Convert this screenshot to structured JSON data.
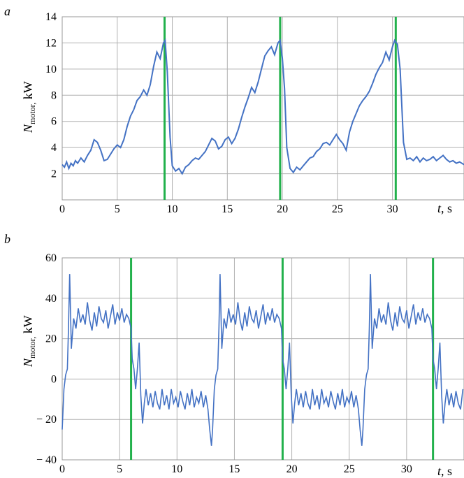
{
  "chart_data": [
    {
      "panel_label": "a",
      "type": "line",
      "ylabel_main": "N",
      "ylabel_sub": "motor,",
      "ylabel_unit": " kW",
      "xlabel_var": "t",
      "xlabel_unit": ", s",
      "xlim": [
        0,
        36.5
      ],
      "ylim": [
        0,
        14
      ],
      "xticks": [
        0,
        5,
        10,
        15,
        20,
        25,
        30
      ],
      "yticks": [
        2,
        4,
        6,
        8,
        10,
        12,
        14
      ],
      "grid": true,
      "colors": {
        "series": "#4472c4",
        "markers": "#22b14c"
      },
      "vlines": [
        9.3,
        19.8,
        30.3
      ],
      "series": [
        {
          "x": [
            0,
            0.2,
            0.4,
            0.6,
            0.8,
            1,
            1.2,
            1.4,
            1.7,
            2,
            2.3,
            2.6,
            2.9,
            3.2,
            3.5,
            3.8,
            4.1,
            4.4,
            4.7,
            5,
            5.3,
            5.6,
            5.9,
            6.2,
            6.5,
            6.8,
            7.1,
            7.4,
            7.7,
            8,
            8.3,
            8.6,
            8.9,
            9.2,
            9.35,
            9.55,
            9.8,
            10,
            10.3,
            10.6,
            10.9,
            11.2,
            11.5,
            11.8,
            12.1,
            12.4,
            12.7,
            13,
            13.3,
            13.6,
            13.9,
            14.2,
            14.5,
            14.8,
            15.1,
            15.4,
            15.7,
            16,
            16.3,
            16.6,
            16.9,
            17.2,
            17.5,
            17.8,
            18.1,
            18.4,
            18.7,
            19,
            19.3,
            19.6,
            19.8,
            20,
            20.2,
            20.4,
            20.7,
            21,
            21.3,
            21.6,
            21.9,
            22.2,
            22.5,
            22.8,
            23.1,
            23.4,
            23.7,
            24,
            24.3,
            24.6,
            24.9,
            25.2,
            25.5,
            25.8,
            26.1,
            26.4,
            26.7,
            27,
            27.3,
            27.6,
            27.9,
            28.2,
            28.5,
            28.8,
            29.1,
            29.4,
            29.7,
            30,
            30.2,
            30.45,
            30.7,
            31,
            31.3,
            31.6,
            31.9,
            32.2,
            32.5,
            32.8,
            33.1,
            33.4,
            33.7,
            34,
            34.3,
            34.6,
            34.9,
            35.2,
            35.5,
            35.8,
            36.1,
            36.5
          ],
          "y": [
            2.7,
            2.5,
            2.9,
            2.4,
            2.8,
            2.6,
            3.0,
            2.8,
            3.2,
            2.9,
            3.4,
            3.8,
            4.6,
            4.4,
            3.8,
            3.0,
            3.1,
            3.5,
            3.9,
            4.2,
            4.0,
            4.6,
            5.6,
            6.4,
            6.9,
            7.6,
            7.9,
            8.4,
            8.0,
            8.8,
            10.2,
            11.3,
            10.8,
            12.0,
            12.2,
            9.8,
            4.8,
            2.6,
            2.2,
            2.4,
            2.0,
            2.5,
            2.7,
            3.0,
            3.2,
            3.1,
            3.4,
            3.7,
            4.2,
            4.7,
            4.5,
            3.9,
            4.1,
            4.6,
            4.8,
            4.3,
            4.7,
            5.4,
            6.3,
            7.1,
            7.8,
            8.6,
            8.2,
            9.0,
            10.0,
            11.0,
            11.4,
            11.7,
            11.1,
            12.0,
            12.2,
            10.8,
            8.5,
            4.0,
            2.4,
            2.1,
            2.5,
            2.3,
            2.6,
            2.9,
            3.2,
            3.3,
            3.7,
            3.9,
            4.3,
            4.4,
            4.2,
            4.6,
            5.0,
            4.6,
            4.3,
            3.8,
            5.2,
            6.0,
            6.6,
            7.2,
            7.6,
            7.9,
            8.3,
            8.9,
            9.6,
            10.1,
            10.5,
            11.3,
            10.7,
            11.7,
            12.2,
            11.9,
            10.0,
            4.4,
            3.1,
            3.2,
            3.0,
            3.3,
            2.9,
            3.2,
            3.0,
            3.1,
            3.3,
            3.0,
            3.2,
            3.4,
            3.1,
            2.9,
            3.0,
            2.8,
            2.9,
            2.7
          ]
        }
      ]
    },
    {
      "panel_label": "b",
      "type": "line",
      "ylabel_main": "N",
      "ylabel_sub": "motor,",
      "ylabel_unit": " kW",
      "xlabel_var": "t",
      "xlabel_unit": ", s",
      "xlim": [
        0,
        35
      ],
      "ylim": [
        -40,
        60
      ],
      "xticks": [
        0,
        5,
        10,
        15,
        20,
        25,
        30
      ],
      "yticks": [
        60,
        40,
        20,
        0,
        -20,
        -40
      ],
      "ytick_labels": [
        "60",
        "40",
        "20",
        "0",
        "− 20",
        "− 40"
      ],
      "grid": true,
      "colors": {
        "series": "#4472c4",
        "markers": "#22b14c"
      },
      "vlines": [
        6.0,
        19.2,
        32.3
      ],
      "cycle": {
        "period": 13.1,
        "times": [
          0,
          0.15,
          0.3,
          0.45,
          0.55,
          0.65,
          0.8,
          1.0,
          1.2,
          1.4,
          1.6,
          1.8,
          2.0,
          2.2,
          2.4,
          2.6,
          2.8,
          3.0,
          3.2,
          3.4,
          3.6,
          3.8,
          4.0,
          4.2,
          4.4,
          4.6,
          4.8,
          5.0,
          5.2,
          5.4,
          5.6,
          5.8,
          6.0,
          6.1,
          6.25,
          6.4,
          6.55,
          6.7,
          6.85,
          7.0,
          7.15,
          7.3,
          7.5,
          7.7,
          7.9,
          8.1,
          8.3,
          8.5,
          8.7,
          8.9,
          9.1,
          9.3,
          9.5,
          9.7,
          9.9,
          10.1,
          10.3,
          10.5,
          10.7,
          10.9,
          11.1,
          11.3,
          11.5,
          11.7,
          11.9,
          12.1,
          12.3,
          12.5,
          12.7,
          12.85,
          13.0
        ],
        "values": [
          -25,
          -5,
          2,
          5,
          25,
          52,
          15,
          30,
          25,
          35,
          28,
          32,
          27,
          38,
          29,
          24,
          33,
          26,
          36,
          30,
          28,
          34,
          25,
          31,
          37,
          27,
          33,
          29,
          35,
          28,
          32,
          30,
          25,
          10,
          5,
          -5,
          5,
          18,
          -8,
          -22,
          -12,
          -5,
          -13,
          -7,
          -14,
          -6,
          -12,
          -15,
          -5,
          -13,
          -8,
          -15,
          -5,
          -12,
          -9,
          -14,
          -6,
          -11,
          -15,
          -7,
          -13,
          -5,
          -14,
          -9,
          -12,
          -6,
          -14,
          -8,
          -15,
          -25,
          -33
        ]
      }
    }
  ]
}
